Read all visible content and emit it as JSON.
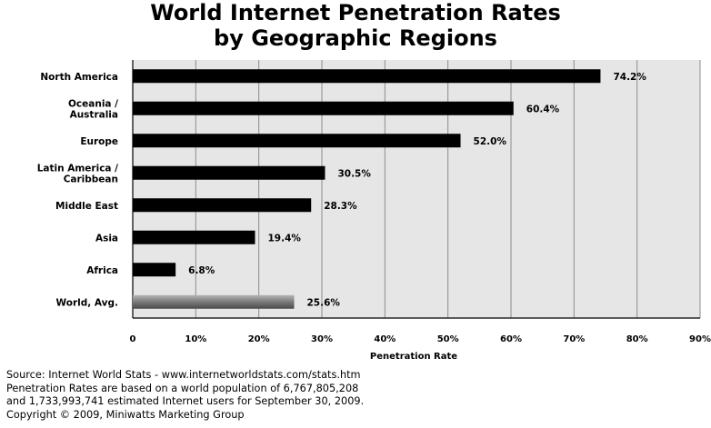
{
  "chart_data": {
    "type": "bar",
    "orientation": "horizontal",
    "title": [
      "World Internet Penetration Rates",
      "by Geographic Regions"
    ],
    "categories": [
      [
        "North America"
      ],
      [
        "Oceania  /",
        "Australia"
      ],
      [
        "Europe"
      ],
      [
        "Latin America /",
        "Caribbean"
      ],
      [
        "Middle East"
      ],
      [
        "Asia"
      ],
      [
        "Africa"
      ],
      [
        "World, Avg."
      ]
    ],
    "values": [
      74.2,
      60.4,
      52.0,
      30.5,
      28.3,
      19.4,
      6.8,
      25.6
    ],
    "value_labels": [
      "74.2%",
      "60.4%",
      "52.0%",
      "30.5%",
      "28.3%",
      "19.4%",
      "6.8%",
      "25.6%"
    ],
    "bar_colors": [
      "#000000",
      "#000000",
      "#000000",
      "#000000",
      "#000000",
      "#000000",
      "#000000",
      "#7a7a7a"
    ],
    "xlabel": "Penetration Rate",
    "ylabel": "",
    "xlim": [
      0,
      90
    ],
    "xticks": [
      0,
      10,
      20,
      30,
      40,
      50,
      60,
      70,
      80,
      90
    ],
    "xtick_labels": [
      "0",
      "10%",
      "20%",
      "30%",
      "40%",
      "50%",
      "60%",
      "70%",
      "80%",
      "90%"
    ],
    "grid": true,
    "plot_background": "#e6e6e6",
    "gridline_color": "#8c8c8c"
  },
  "source_note": [
    "Source: Internet World Stats - www.internetworldstats.com/stats.htm",
    "Penetration Rates are based on a world population of 6,767,805,208",
    "and 1,733,993,741 estimated Internet users for September 30, 2009.",
    "Copyright © 2009, Miniwatts Marketing Group"
  ]
}
